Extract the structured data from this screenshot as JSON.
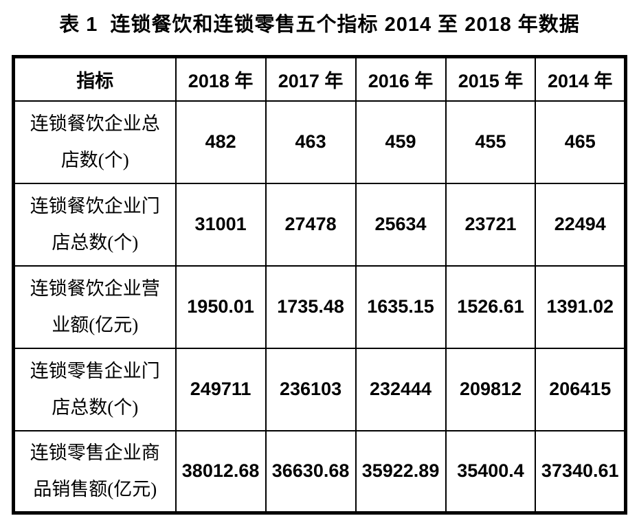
{
  "page": {
    "title": "表 1  连锁餐饮和连锁零售五个指标 2014 至 2018 年数据"
  },
  "table": {
    "headers": [
      "指标",
      "2018 年",
      "2017 年",
      "2016 年",
      "2015 年",
      "2014 年"
    ],
    "rows": [
      {
        "label": "连锁餐饮企业总\n店数(个)",
        "values": [
          "482",
          "463",
          "459",
          "455",
          "465"
        ]
      },
      {
        "label": "连锁餐饮企业门\n店总数(个)",
        "values": [
          "31001",
          "27478",
          "25634",
          "23721",
          "22494"
        ]
      },
      {
        "label": "连锁餐饮企业营\n业额(亿元)",
        "values": [
          "1950.01",
          "1735.48",
          "1635.15",
          "1526.61",
          "1391.02"
        ]
      },
      {
        "label": "连锁零售企业门\n店总数(个)",
        "values": [
          "249711",
          "236103",
          "232444",
          "209812",
          "206415"
        ]
      },
      {
        "label": "连锁零售企业商\n品销售额(亿元)",
        "values": [
          "38012.68",
          "36630.68",
          "35922.89",
          "35400.4",
          "37340.61"
        ]
      }
    ]
  },
  "chart_data": {
    "type": "table",
    "title": "表 1 连锁餐饮和连锁零售五个指标 2014 至 2018 年数据",
    "columns": [
      "指标",
      "2018 年",
      "2017 年",
      "2016 年",
      "2015 年",
      "2014 年"
    ],
    "rows": [
      [
        "连锁餐饮企业总店数(个)",
        482,
        463,
        459,
        455,
        465
      ],
      [
        "连锁餐饮企业门店总数(个)",
        31001,
        27478,
        25634,
        23721,
        22494
      ],
      [
        "连锁餐饮企业营业额(亿元)",
        1950.01,
        1735.48,
        1635.15,
        1526.61,
        1391.02
      ],
      [
        "连锁零售企业门店总数(个)",
        249711,
        236103,
        232444,
        209812,
        206415
      ],
      [
        "连锁零售企业商品销售额(亿元)",
        38012.68,
        36630.68,
        35922.89,
        35400.4,
        37340.61
      ]
    ]
  }
}
